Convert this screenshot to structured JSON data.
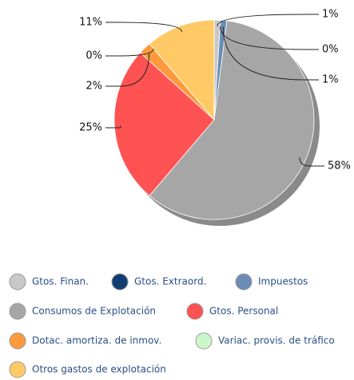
{
  "chart_data": {
    "type": "pie",
    "categories": [
      "Gtos. Finan.",
      "Gtos. Extraord.",
      "Impuestos",
      "Consumos de Explotación",
      "Gtos. Personal",
      "Dotac. amortiza. de inmov.",
      "Variac. provis. de tráfico",
      "Otros gastos de explotación"
    ],
    "values": [
      1,
      0,
      1,
      58,
      25,
      2,
      0,
      11
    ],
    "value_labels": [
      "1%",
      "0%",
      "1%",
      "58%",
      "25%",
      "2%",
      "0%",
      "11%"
    ],
    "colors": [
      "#c8c8c8",
      "#123d73",
      "#6b8db5",
      "#a6a6a6",
      "#ff5252",
      "#ff9a3c",
      "#ccf5cc",
      "#ffca66"
    ]
  }
}
